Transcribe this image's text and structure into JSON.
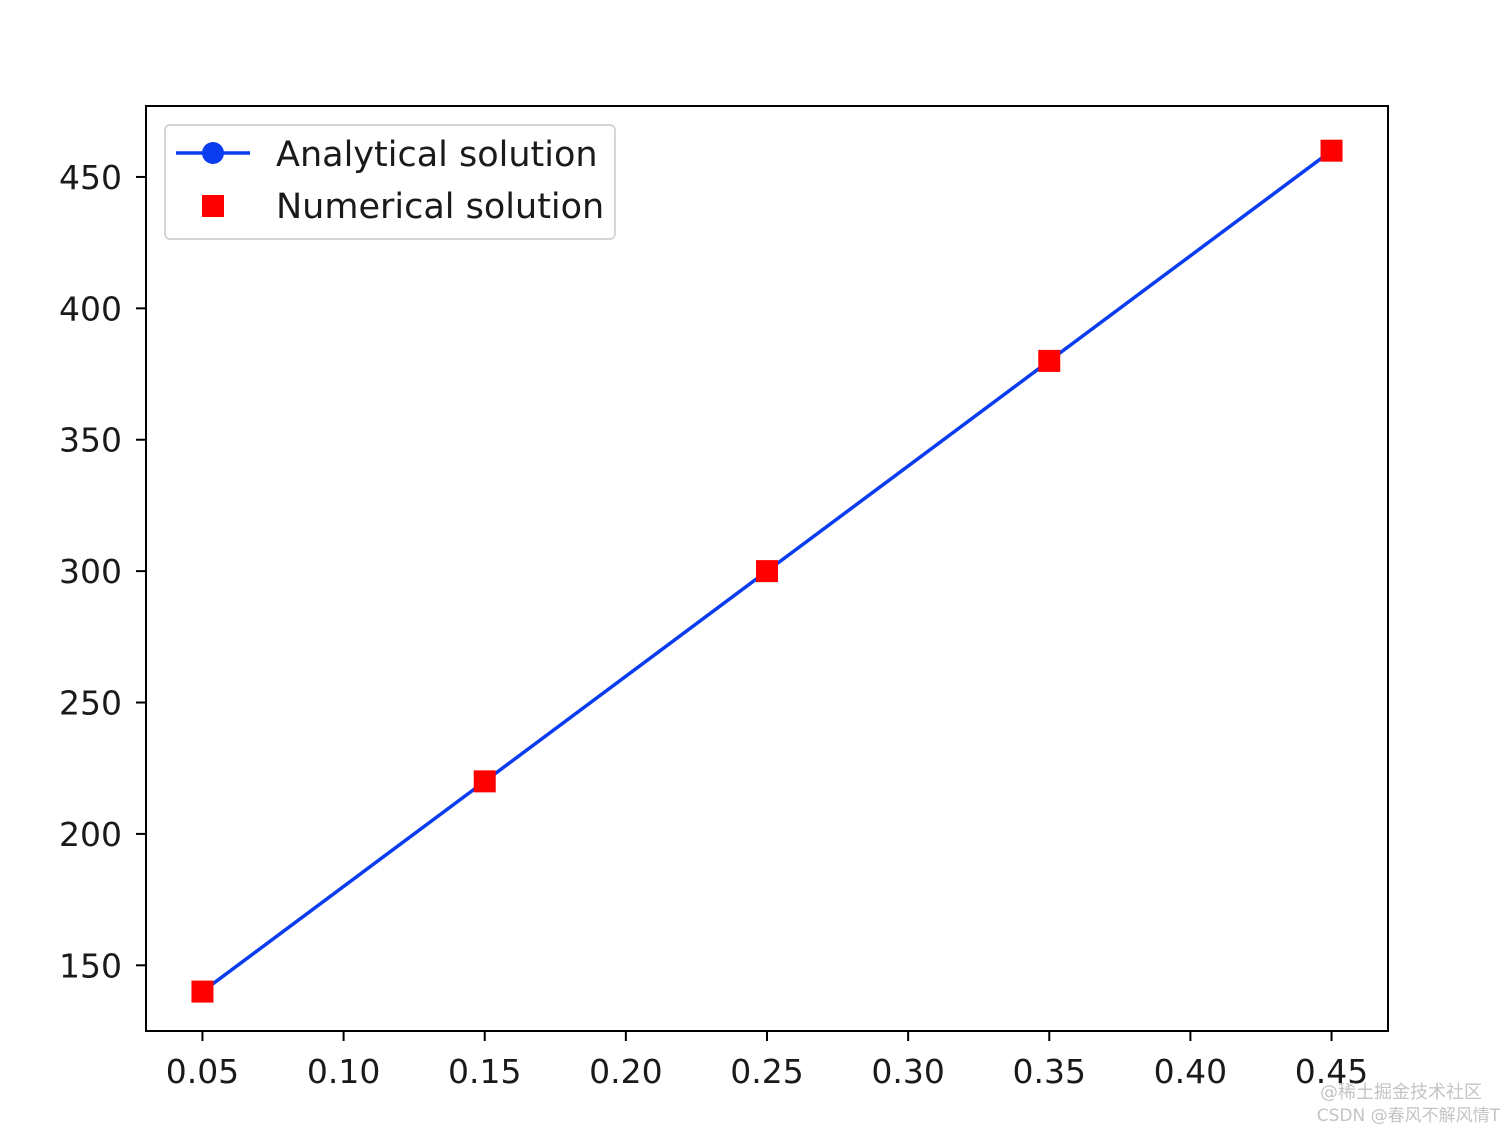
{
  "chart_data": {
    "type": "line",
    "title": "",
    "xlabel": "",
    "ylabel": "",
    "xlim": [
      0.03,
      0.47
    ],
    "ylim": [
      125,
      477
    ],
    "x_ticks": [
      0.05,
      0.1,
      0.15,
      0.2,
      0.25,
      0.3,
      0.35,
      0.4,
      0.45
    ],
    "x_tick_labels": [
      "0.05",
      "0.10",
      "0.15",
      "0.20",
      "0.25",
      "0.30",
      "0.35",
      "0.40",
      "0.45"
    ],
    "y_ticks": [
      150,
      200,
      250,
      300,
      350,
      400,
      450
    ],
    "y_tick_labels": [
      "150",
      "200",
      "250",
      "300",
      "350",
      "400",
      "450"
    ],
    "grid": false,
    "legend_position": "upper-left",
    "series": [
      {
        "name": "Analytical solution",
        "style": "line",
        "color": "#0a3cf0",
        "marker": "circle",
        "x": [
          0.05,
          0.15,
          0.25,
          0.35,
          0.45
        ],
        "values": [
          140,
          220,
          300,
          380,
          460
        ]
      },
      {
        "name": "Numerical solution",
        "style": "markers",
        "color": "#ff0000",
        "marker": "square",
        "x": [
          0.05,
          0.15,
          0.25,
          0.35,
          0.45
        ],
        "values": [
          140,
          220,
          300,
          380,
          460
        ]
      }
    ]
  },
  "watermark": {
    "line1": "@稀土掘金技术社区",
    "line2": "CSDN @春风不解风情T"
  }
}
